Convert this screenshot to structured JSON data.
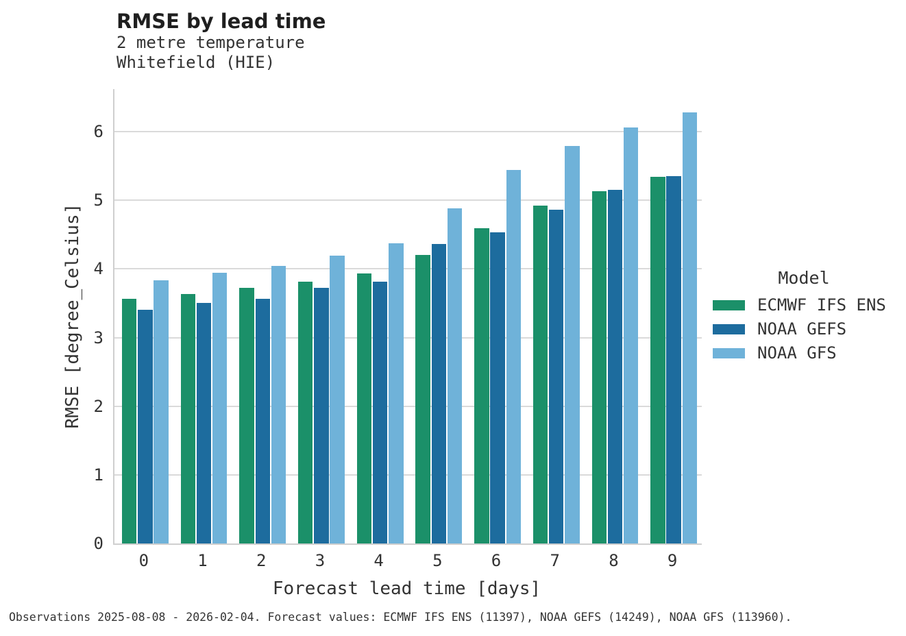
{
  "chart_data": {
    "type": "bar",
    "title": "RMSE by lead time",
    "subtitle": [
      "2 metre temperature",
      "Whitefield (HIE)"
    ],
    "categories": [
      "0",
      "1",
      "2",
      "3",
      "4",
      "5",
      "6",
      "7",
      "8",
      "9"
    ],
    "series": [
      {
        "name": "ECMWF IFS ENS",
        "color": "#1b9069",
        "values": [
          3.56,
          3.63,
          3.72,
          3.81,
          3.93,
          4.2,
          4.59,
          4.92,
          5.13,
          5.34
        ]
      },
      {
        "name": "NOAA GEFS",
        "color": "#1d6c9e",
        "values": [
          3.41,
          3.5,
          3.56,
          3.72,
          3.81,
          4.36,
          4.53,
          4.86,
          5.15,
          5.35
        ]
      },
      {
        "name": "NOAA GFS",
        "color": "#6fb2d9",
        "values": [
          3.83,
          3.94,
          4.04,
          4.19,
          4.37,
          4.88,
          5.44,
          5.79,
          6.06,
          6.28
        ]
      }
    ],
    "xlabel": "Forecast lead time [days]",
    "ylabel": "RMSE [degree_Celsius]",
    "ylim": [
      0,
      6.62
    ],
    "yticks": [
      0,
      1,
      2,
      3,
      4,
      5,
      6
    ],
    "grid": true,
    "legend_title": "Model",
    "legend_position": "right",
    "colors": {
      "gridline": "#dadada",
      "spine": "#cfcfcf",
      "text": "#333333"
    }
  },
  "footnote": "Observations 2025-08-08 - 2026-02-04. Forecast values: ECMWF IFS ENS (11397), NOAA GEFS (14249), NOAA GFS (113960)."
}
